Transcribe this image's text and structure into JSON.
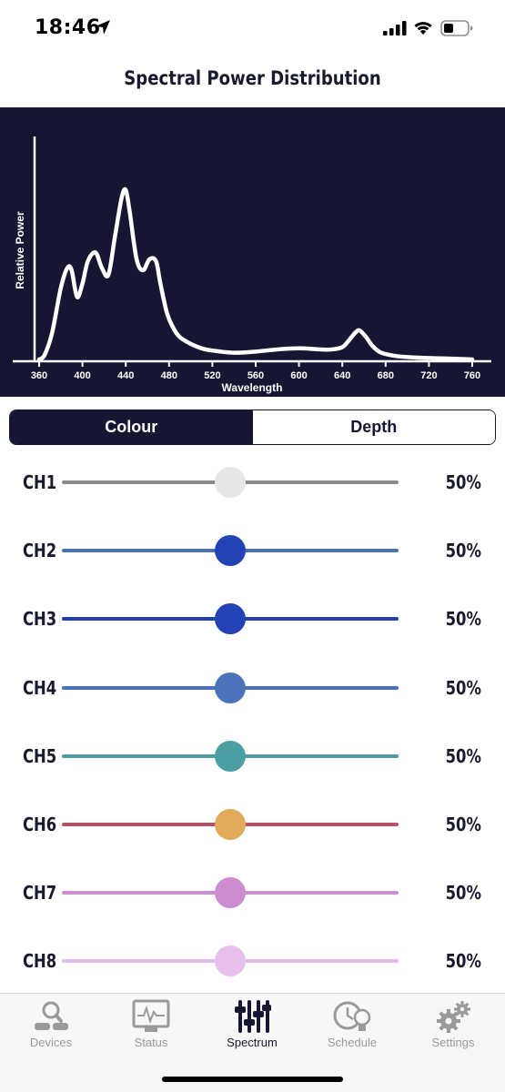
{
  "status_bar": {
    "time": "18:46",
    "icons": [
      "location-arrow-icon",
      "cellular-signal-icon",
      "wifi-icon",
      "battery-icon"
    ]
  },
  "page": {
    "title": "Spectral Power Distribution"
  },
  "chart_data": {
    "type": "line",
    "xlabel": "Wavelength",
    "ylabel": "Relative Power",
    "xlim": [
      355,
      770
    ],
    "ylim": [
      0,
      1.0
    ],
    "x_ticks": [
      360,
      400,
      440,
      480,
      520,
      560,
      600,
      640,
      680,
      720,
      760
    ],
    "line_color": "#ffffff",
    "background": "#161632",
    "series": [
      {
        "x": [
          360,
          365,
          372,
          380,
          386,
          390,
          395,
          400,
          405,
          412,
          418,
          424,
          430,
          436,
          440,
          444,
          450,
          456,
          462,
          468,
          472,
          478,
          484,
          490,
          500,
          510,
          520,
          540,
          560,
          580,
          600,
          620,
          630,
          640,
          646,
          652,
          656,
          662,
          668,
          676,
          690,
          710,
          730,
          750,
          760
        ],
        "y": [
          0.0,
          0.02,
          0.12,
          0.32,
          0.41,
          0.4,
          0.28,
          0.34,
          0.44,
          0.48,
          0.41,
          0.38,
          0.55,
          0.72,
          0.76,
          0.65,
          0.45,
          0.4,
          0.45,
          0.44,
          0.34,
          0.21,
          0.14,
          0.1,
          0.07,
          0.05,
          0.04,
          0.03,
          0.035,
          0.045,
          0.05,
          0.045,
          0.045,
          0.055,
          0.085,
          0.12,
          0.13,
          0.1,
          0.06,
          0.03,
          0.015,
          0.008,
          0.005,
          0.002,
          0.0
        ]
      }
    ]
  },
  "segmented_control": {
    "options": [
      "Colour",
      "Depth"
    ],
    "selected": "Colour"
  },
  "channels": [
    {
      "label": "CH1",
      "value": 0.5,
      "value_text": "50%",
      "track_color": "#8a8a8a",
      "thumb_color": "#e6e6e6"
    },
    {
      "label": "CH2",
      "value": 0.5,
      "value_text": "50%",
      "track_color": "#4a6fb5",
      "thumb_color": "#2343b4"
    },
    {
      "label": "CH3",
      "value": 0.5,
      "value_text": "50%",
      "track_color": "#2140a8",
      "thumb_color": "#2242b6"
    },
    {
      "label": "CH4",
      "value": 0.5,
      "value_text": "50%",
      "track_color": "#4a72b8",
      "thumb_color": "#4a73b9"
    },
    {
      "label": "CH5",
      "value": 0.5,
      "value_text": "50%",
      "track_color": "#4a9ea0",
      "thumb_color": "#4b9fa2"
    },
    {
      "label": "CH6",
      "value": 0.5,
      "value_text": "50%",
      "track_color": "#b45267",
      "thumb_color": "#e2a95b"
    },
    {
      "label": "CH7",
      "value": 0.5,
      "value_text": "50%",
      "track_color": "#cc8ccf",
      "thumb_color": "#cc8cd0"
    },
    {
      "label": "CH8",
      "value": 0.5,
      "value_text": "50%",
      "track_color": "#e3bde9",
      "thumb_color": "#e6bfea"
    }
  ],
  "tab_bar": {
    "tabs": [
      {
        "label": "Devices",
        "icon": "devices-icon",
        "active": false
      },
      {
        "label": "Status",
        "icon": "status-monitor-icon",
        "active": false
      },
      {
        "label": "Spectrum",
        "icon": "sliders-icon",
        "active": true
      },
      {
        "label": "Schedule",
        "icon": "clock-bulb-icon",
        "active": false
      },
      {
        "label": "Settings",
        "icon": "gears-icon",
        "active": false
      }
    ]
  }
}
